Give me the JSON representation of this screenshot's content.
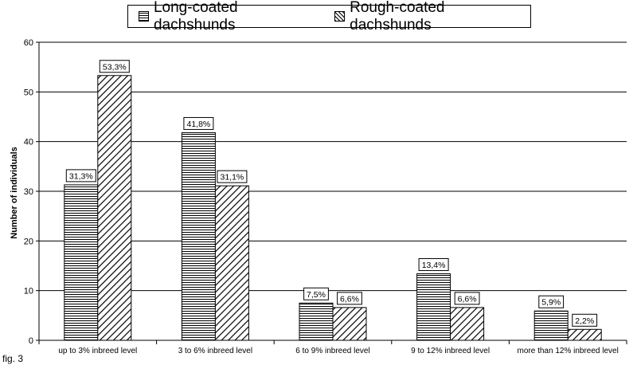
{
  "chart_data": {
    "type": "bar",
    "categories": [
      "up to 3% inbreed level",
      "3 to 6% inbreed level",
      "6 to 9% inbreed level",
      "9 to 12% inbreed level",
      "more than 12% inbreed level"
    ],
    "series": [
      {
        "name": "Long-coated dachshunds",
        "values": [
          31.3,
          41.8,
          7.5,
          13.4,
          5.9
        ],
        "labels": [
          "31,3%",
          "41,8%",
          "7,5%",
          "13,4%",
          "5,9%"
        ],
        "pattern": "horizontal-lines"
      },
      {
        "name": "Rough-coated dachshunds",
        "values": [
          53.3,
          31.1,
          6.6,
          6.6,
          2.2
        ],
        "labels": [
          "53,3%",
          "31,1%",
          "6,6%",
          "6,6%",
          "2,2%"
        ],
        "pattern": "diagonal-lines"
      }
    ],
    "ylabel": "Number of individuals",
    "xlabel": "",
    "ylim": [
      0,
      60
    ],
    "yticks": [
      0,
      10,
      20,
      30,
      40,
      50,
      60
    ],
    "grid": true,
    "legend_position": "top"
  },
  "figure_label": "fig. 3"
}
